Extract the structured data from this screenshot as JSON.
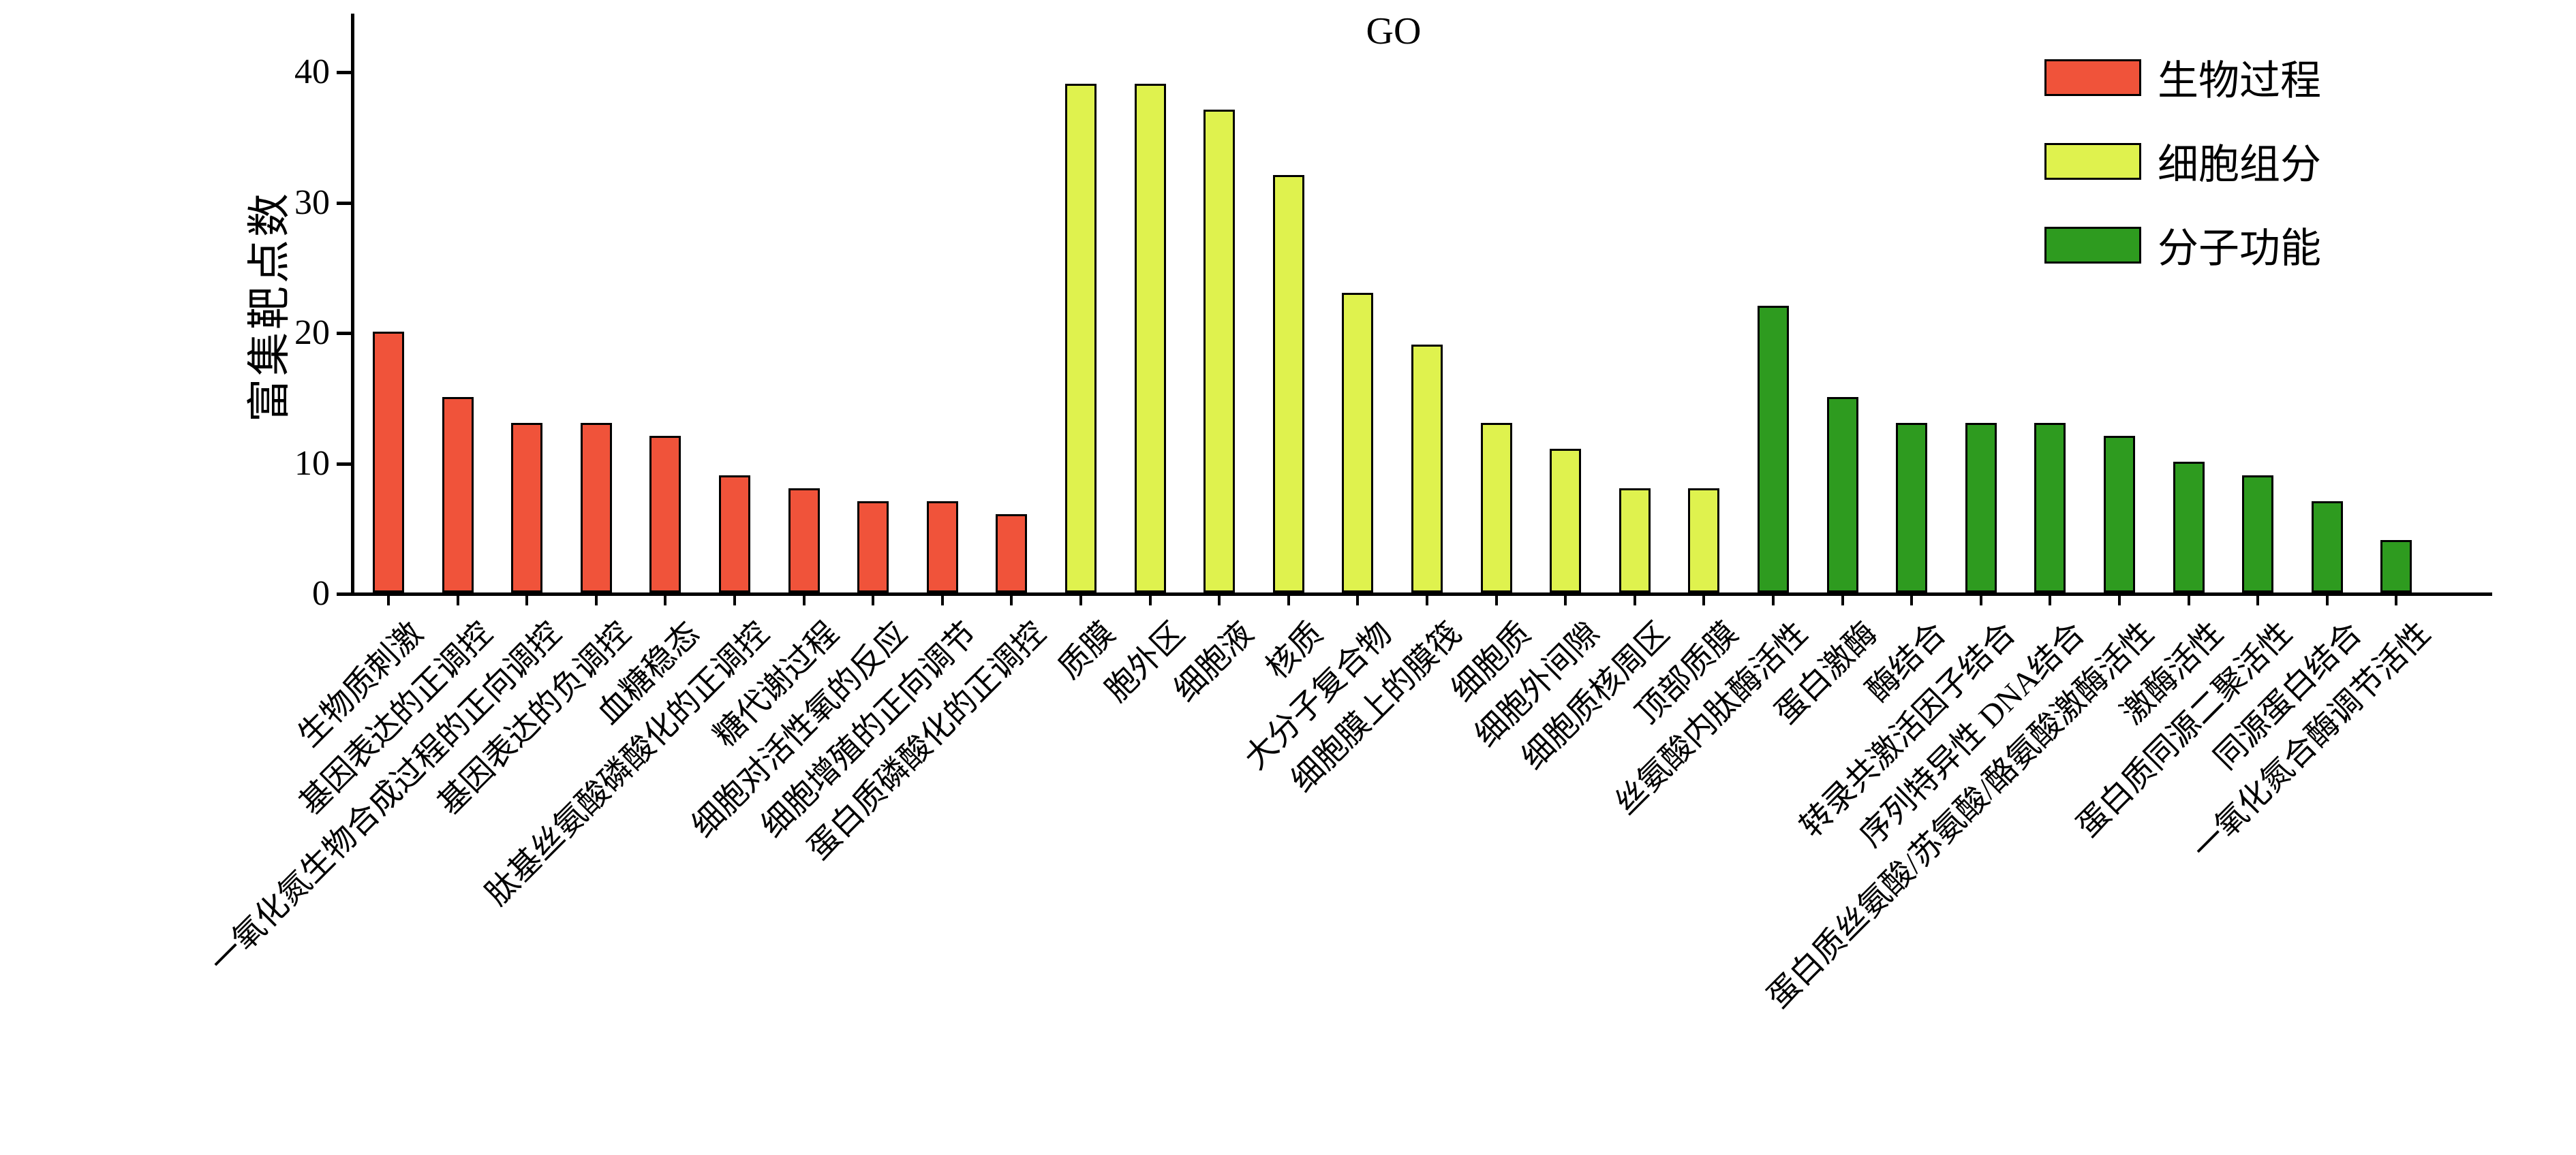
{
  "title": "GO",
  "y_axis": {
    "label": "富集靶点数",
    "ticks": [
      0,
      10,
      20,
      30,
      40
    ],
    "max": 40
  },
  "legend": {
    "position": "top-right",
    "items": [
      {
        "label": "生物过程",
        "color": "#F0533A"
      },
      {
        "label": "细胞组分",
        "color": "#DFF24E"
      },
      {
        "label": "分子功能",
        "color": "#2E9B1F"
      }
    ]
  },
  "chart_data": {
    "type": "bar",
    "title": "GO",
    "xlabel": "",
    "ylabel": "富集靶点数",
    "ylim": [
      0,
      40
    ],
    "yticks": [
      0,
      10,
      20,
      30,
      40
    ],
    "grid": false,
    "legend_position": "top-right",
    "groups": [
      {
        "name": "生物过程",
        "color": "#F0533A",
        "categories": [
          "生物质刺激",
          "基因表达的正调控",
          "一氧化氮生物合成过程的正向调控",
          "基因表达的负调控",
          "血糖稳态",
          "肽基丝氨酸磷酸化的正调控",
          "糖代谢过程",
          "细胞对活性氧的反应",
          "细胞增殖的正向调节",
          "蛋白质磷酸化的正调控"
        ],
        "values": [
          20,
          15,
          13,
          13,
          12,
          9,
          8,
          7,
          7,
          6
        ]
      },
      {
        "name": "细胞组分",
        "color": "#DFF24E",
        "categories": [
          "质膜",
          "胞外区",
          "细胞液",
          "核质",
          "大分子复合物",
          "细胞膜上的膜筏",
          "细胞质",
          "细胞外间隙",
          "细胞质核周区",
          "顶部质膜"
        ],
        "values": [
          39,
          39,
          37,
          32,
          23,
          19,
          13,
          11,
          8,
          8
        ]
      },
      {
        "name": "分子功能",
        "color": "#2E9B1F",
        "categories": [
          "丝氨酸内肽酶活性",
          "蛋白激酶",
          "酶结合",
          "转录共激活因子结合",
          "序列特异性 DNA结合",
          "蛋白质丝氨酸/苏氨酸/酪氨酸激酶活性",
          "激酶活性",
          "蛋白质同源二聚活性",
          "同源蛋白结合",
          "一氧化氮合酶调节活性"
        ],
        "values": [
          22,
          15,
          13,
          13,
          13,
          12,
          10,
          9,
          7,
          4
        ]
      }
    ]
  }
}
